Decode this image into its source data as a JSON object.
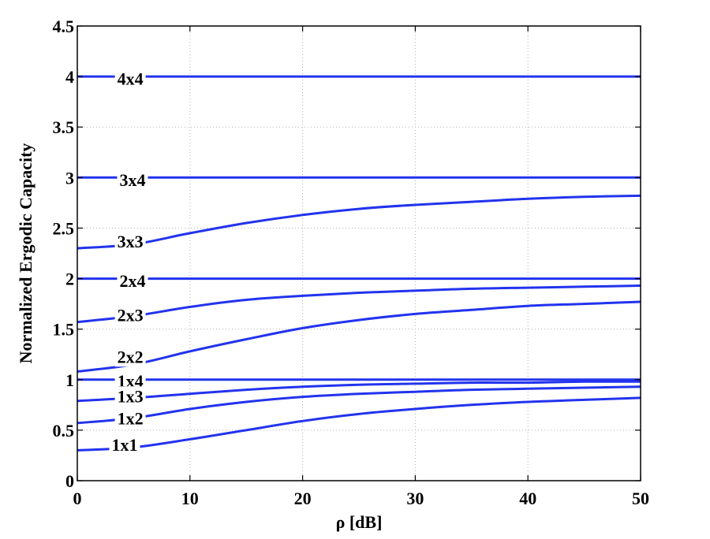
{
  "chart_data": {
    "type": "line",
    "title": "",
    "xlabel": "ρ [dB]",
    "ylabel": "Normalized Ergodic Capacity",
    "xlim": [
      0,
      50
    ],
    "ylim": [
      0,
      4.5
    ],
    "grid": true,
    "x_ticks": [
      "0",
      "10",
      "20",
      "30",
      "40",
      "50"
    ],
    "y_ticks": [
      "0",
      "0.5",
      "1",
      "1.5",
      "2",
      "2.5",
      "3",
      "3.5",
      "4",
      "4.5"
    ],
    "line_color": "#2233ee",
    "x": [
      0,
      5,
      10,
      15,
      20,
      25,
      30,
      35,
      40,
      45,
      50
    ],
    "series": [
      {
        "name": "4x4",
        "values": [
          4,
          4,
          4,
          4,
          4,
          4,
          4,
          4,
          4,
          4,
          4
        ],
        "label_x": 4.7,
        "label_y": 3.98
      },
      {
        "name": "3x4",
        "values": [
          3,
          3,
          3,
          3,
          3,
          3,
          3,
          3,
          3,
          3,
          3
        ],
        "label_x": 4.9,
        "label_y": 2.98
      },
      {
        "name": "3x3",
        "values": [
          2.3,
          2.34,
          2.45,
          2.55,
          2.63,
          2.69,
          2.73,
          2.76,
          2.79,
          2.81,
          2.82
        ],
        "label_x": 4.7,
        "label_y": 2.37
      },
      {
        "name": "2x4",
        "values": [
          2,
          2,
          2,
          2,
          2,
          2,
          2,
          2,
          2,
          2,
          2
        ],
        "label_x": 4.9,
        "label_y": 1.98
      },
      {
        "name": "2x3",
        "values": [
          1.57,
          1.63,
          1.72,
          1.79,
          1.83,
          1.86,
          1.88,
          1.9,
          1.91,
          1.92,
          1.93
        ],
        "label_x": 4.7,
        "label_y": 1.64
      },
      {
        "name": "2x2",
        "values": [
          1.08,
          1.15,
          1.28,
          1.4,
          1.51,
          1.59,
          1.65,
          1.69,
          1.73,
          1.75,
          1.77
        ],
        "label_x": 4.7,
        "label_y": 1.23
      },
      {
        "name": "1x4",
        "values": [
          1,
          1,
          1,
          1,
          1,
          1,
          1,
          1,
          1,
          1,
          1
        ],
        "label_x": 4.7,
        "label_y": 0.99
      },
      {
        "name": "1x3",
        "values": [
          0.79,
          0.82,
          0.86,
          0.9,
          0.93,
          0.95,
          0.96,
          0.97,
          0.97,
          0.98,
          0.98
        ],
        "label_x": 4.7,
        "label_y": 0.84
      },
      {
        "name": "1x2",
        "values": [
          0.57,
          0.62,
          0.71,
          0.78,
          0.83,
          0.86,
          0.88,
          0.9,
          0.91,
          0.92,
          0.93
        ],
        "label_x": 4.7,
        "label_y": 0.62
      },
      {
        "name": "1x1",
        "values": [
          0.3,
          0.33,
          0.41,
          0.5,
          0.59,
          0.66,
          0.71,
          0.75,
          0.78,
          0.8,
          0.82
        ],
        "label_x": 4.2,
        "label_y": 0.36
      }
    ]
  }
}
